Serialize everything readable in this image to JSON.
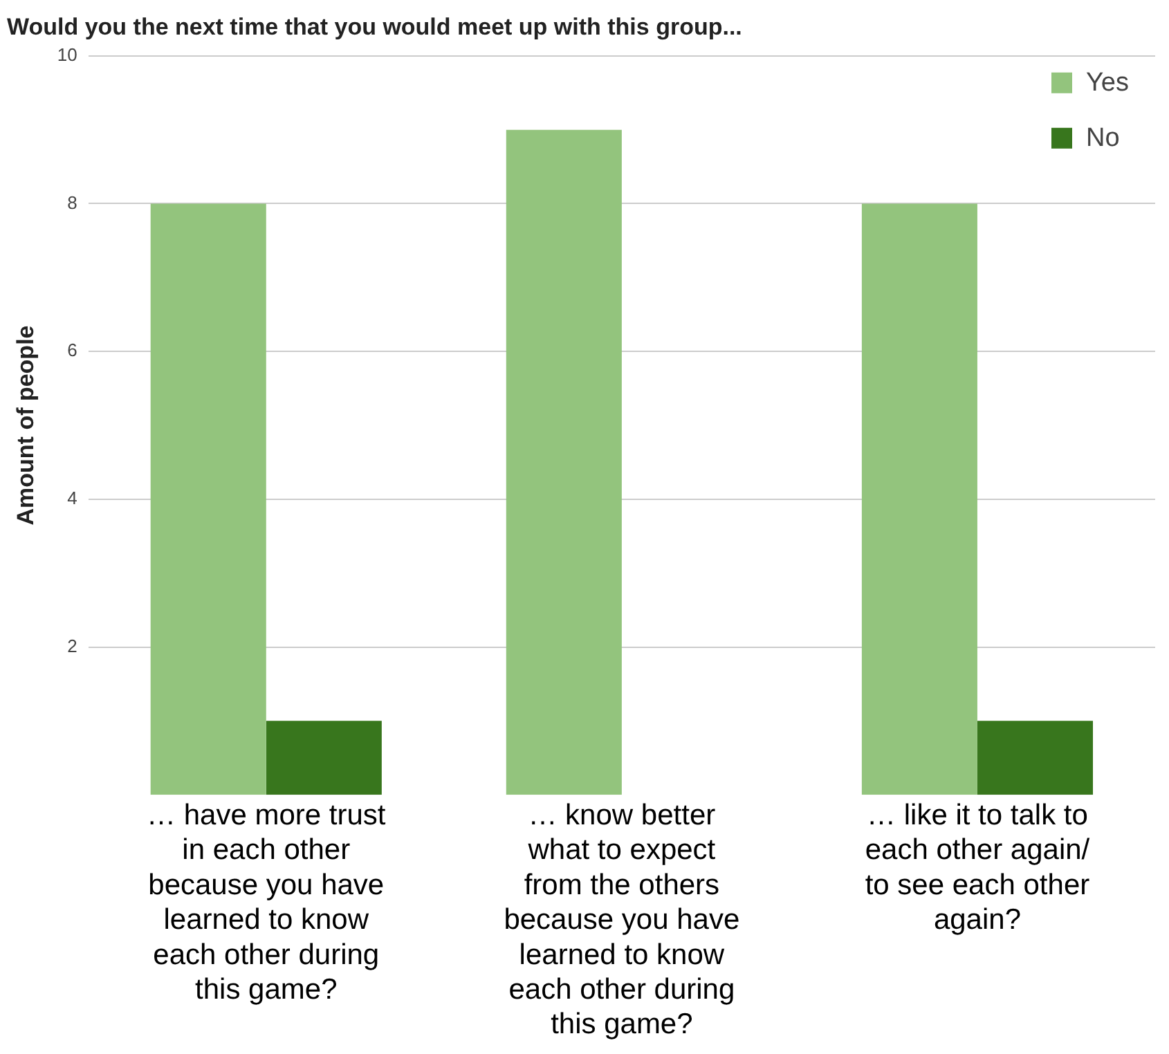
{
  "chart_data": {
    "type": "bar",
    "title": "Would you the next time that you would meet up with this group...",
    "ylabel": "Amount of people",
    "categories": [
      "… have more trust in each other because you have learned to know each other during this game?",
      "… know better what to expect from the others because you have learned to know each other during this game?",
      "… like it to talk to each other again/ to see each other again?"
    ],
    "series": [
      {
        "name": "Yes",
        "color": "#93c47d",
        "values": [
          8,
          9,
          8
        ]
      },
      {
        "name": "No",
        "color": "#38761d",
        "values": [
          1,
          0,
          1
        ]
      }
    ],
    "ylim": [
      0,
      10
    ],
    "yticks": [
      2,
      4,
      6,
      8,
      10
    ],
    "grid": "y",
    "legend": "top right"
  }
}
